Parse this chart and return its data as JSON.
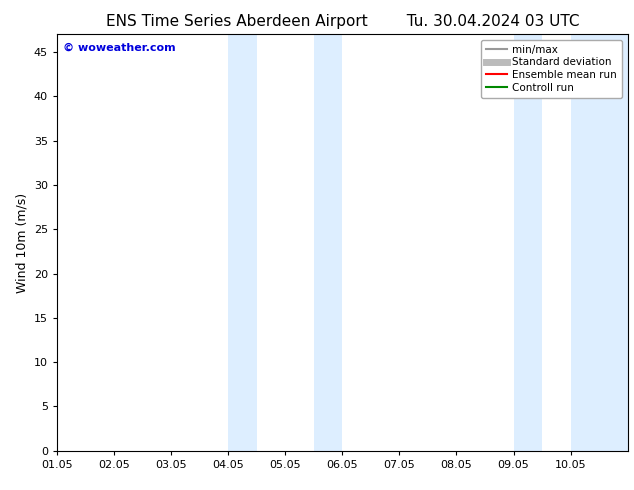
{
  "title_left": "ENS Time Series Aberdeen Airport",
  "title_right": "Tu. 30.04.2024 03 UTC",
  "ylabel": "Wind 10m (m/s)",
  "xlim": [
    0,
    10
  ],
  "ylim": [
    0,
    47
  ],
  "yticks": [
    0,
    5,
    10,
    15,
    20,
    25,
    30,
    35,
    40,
    45
  ],
  "xtick_positions": [
    0,
    1,
    2,
    3,
    4,
    5,
    6,
    7,
    8,
    9
  ],
  "xtick_labels": [
    "01.05",
    "02.05",
    "03.05",
    "04.05",
    "05.05",
    "06.05",
    "07.05",
    "08.05",
    "09.05",
    "10.05"
  ],
  "shaded_bands": [
    {
      "x_start": 3.0,
      "x_end": 3.5,
      "color": "#ddeeff"
    },
    {
      "x_start": 4.5,
      "x_end": 5.0,
      "color": "#ddeeff"
    },
    {
      "x_start": 8.0,
      "x_end": 8.5,
      "color": "#ddeeff"
    },
    {
      "x_start": 9.0,
      "x_end": 10.0,
      "color": "#ddeeff"
    }
  ],
  "watermark_text": "© woweather.com",
  "watermark_color": "#0000dd",
  "background_color": "#ffffff",
  "plot_bg_color": "#ffffff",
  "legend_items": [
    {
      "label": "min/max",
      "color": "#999999",
      "lw": 1.5
    },
    {
      "label": "Standard deviation",
      "color": "#bbbbbb",
      "lw": 5
    },
    {
      "label": "Ensemble mean run",
      "color": "#ff0000",
      "lw": 1.5
    },
    {
      "label": "Controll run",
      "color": "#008800",
      "lw": 1.5
    }
  ],
  "title_fontsize": 11,
  "ylabel_fontsize": 9,
  "tick_fontsize": 8,
  "legend_fontsize": 7.5,
  "watermark_fontsize": 8
}
